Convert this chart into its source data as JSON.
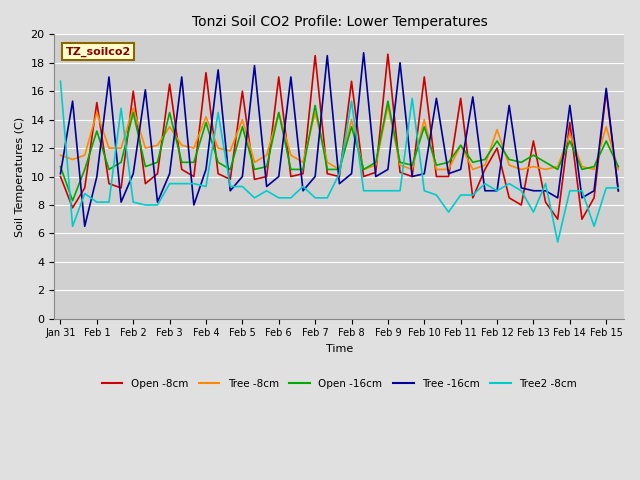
{
  "title": "Tonzi Soil CO2 Profile: Lower Temperatures",
  "xlabel": "Time",
  "ylabel": "Soil Temperatures (C)",
  "ylim": [
    0,
    20
  ],
  "yticks": [
    0,
    2,
    4,
    6,
    8,
    10,
    12,
    14,
    16,
    18,
    20
  ],
  "label_box_text": "TZ_soilco2",
  "fig_bg_color": "#e0e0e0",
  "plot_bg_color": "#d0d0d0",
  "series": {
    "open_8cm": {
      "label": "Open -8cm",
      "color": "#cc0000",
      "values": [
        10.0,
        7.8,
        9.2,
        15.2,
        9.5,
        9.2,
        16.0,
        9.5,
        10.2,
        16.5,
        10.5,
        10.0,
        17.3,
        10.2,
        9.8,
        16.0,
        9.8,
        10.0,
        17.0,
        10.0,
        10.2,
        18.5,
        10.2,
        10.0,
        16.7,
        10.0,
        10.3,
        18.6,
        10.3,
        10.0,
        17.0,
        10.0,
        10.0,
        15.5,
        8.5,
        10.5,
        12.0,
        8.5,
        8.0,
        12.5,
        8.2,
        7.0,
        13.8,
        7.0,
        8.5,
        16.0,
        9.0
      ]
    },
    "tree_8cm": {
      "label": "Tree -8cm",
      "color": "#ff8800",
      "values": [
        11.5,
        11.2,
        11.5,
        14.5,
        12.0,
        12.0,
        14.8,
        12.0,
        12.2,
        13.5,
        12.2,
        12.0,
        14.2,
        12.0,
        11.8,
        14.0,
        11.0,
        11.5,
        14.5,
        11.5,
        11.0,
        14.5,
        11.0,
        10.5,
        14.0,
        10.5,
        10.8,
        15.0,
        10.8,
        10.5,
        14.0,
        10.5,
        10.5,
        12.2,
        10.5,
        10.8,
        13.3,
        10.8,
        10.5,
        10.7,
        10.5,
        10.7,
        13.0,
        10.7,
        10.5,
        13.5,
        10.5
      ]
    },
    "open_16cm": {
      "label": "Open -16cm",
      "color": "#00aa00",
      "values": [
        10.7,
        8.3,
        10.5,
        13.2,
        10.5,
        11.0,
        14.5,
        10.7,
        11.0,
        14.5,
        11.0,
        11.0,
        13.8,
        11.0,
        10.5,
        13.5,
        10.5,
        10.7,
        14.5,
        10.5,
        10.5,
        15.0,
        10.5,
        10.5,
        13.5,
        10.5,
        11.0,
        15.3,
        11.0,
        10.8,
        13.5,
        10.8,
        11.0,
        12.2,
        11.0,
        11.2,
        12.5,
        11.2,
        11.0,
        11.5,
        11.0,
        10.5,
        12.5,
        10.5,
        10.7,
        12.5,
        10.7
      ]
    },
    "tree_16cm": {
      "label": "Tree -16cm",
      "color": "#000099",
      "values": [
        10.2,
        15.3,
        6.5,
        10.0,
        17.0,
        8.2,
        10.2,
        16.1,
        8.2,
        10.2,
        17.0,
        8.0,
        10.5,
        17.5,
        9.0,
        10.0,
        17.8,
        9.3,
        10.0,
        17.0,
        9.0,
        10.0,
        18.5,
        9.5,
        10.2,
        18.7,
        10.0,
        10.5,
        18.0,
        10.0,
        10.2,
        15.5,
        10.2,
        10.5,
        15.6,
        9.0,
        9.0,
        15.0,
        9.2,
        9.0,
        9.0,
        8.5,
        15.0,
        8.5,
        9.0,
        16.2,
        9.0
      ]
    },
    "tree2_8cm": {
      "label": "Tree2 -8cm",
      "color": "#00cccc",
      "values": [
        16.7,
        6.5,
        8.8,
        8.2,
        8.2,
        14.8,
        8.2,
        8.0,
        8.0,
        9.5,
        9.5,
        9.5,
        9.3,
        14.5,
        9.3,
        9.3,
        8.5,
        9.0,
        8.5,
        8.5,
        9.3,
        8.5,
        8.5,
        10.2,
        15.3,
        9.0,
        9.0,
        9.0,
        9.0,
        15.5,
        9.0,
        8.7,
        7.5,
        8.7,
        8.7,
        9.5,
        9.0,
        9.5,
        9.0,
        7.5,
        9.5,
        5.4,
        9.0,
        9.0,
        6.5,
        9.2,
        9.2
      ]
    }
  },
  "n_points": 47,
  "x_tick_labels": [
    "Jan 31",
    "Feb 1",
    "Feb 2",
    "Feb 3",
    "Feb 4",
    "Feb 5",
    "Feb 6",
    "Feb 7",
    "Feb 8",
    "Feb 9",
    "Feb 10",
    "Feb 11",
    "Feb 12",
    "Feb 13",
    "Feb 14",
    "Feb 15"
  ],
  "x_tick_positions": [
    0,
    3,
    6,
    9,
    12,
    15,
    18,
    21,
    24,
    27,
    30,
    33,
    36,
    39,
    42,
    45
  ]
}
